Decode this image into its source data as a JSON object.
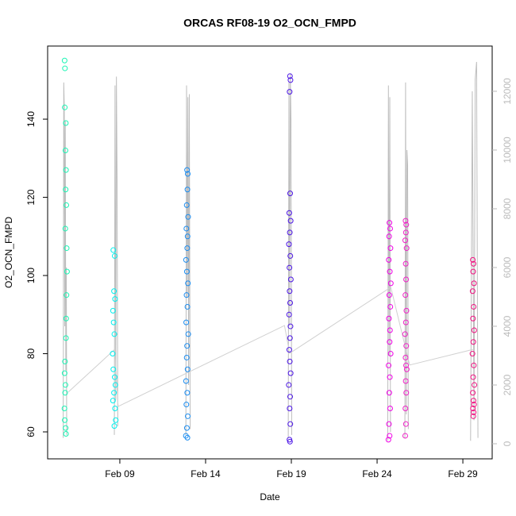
{
  "chart_data": {
    "type": "scatter",
    "title": "ORCAS RF08-19 O2_OCN_FMPD",
    "x_label": "Date",
    "y_label": "O2_OCN_FMPD",
    "xlim": [
      4.79,
      30.71
    ],
    "ylim": [
      53.1,
      158.7
    ],
    "y2lim": [
      -514,
      13540
    ],
    "xticks": [
      {
        "value": 9,
        "label": "Feb 09"
      },
      {
        "value": 14,
        "label": "Feb 14"
      },
      {
        "value": 19,
        "label": "Feb 19"
      },
      {
        "value": 24,
        "label": "Feb 24"
      },
      {
        "value": 29,
        "label": "Feb 29"
      }
    ],
    "yticks": [
      60,
      80,
      100,
      120,
      140
    ],
    "y2ticks": [
      0,
      2000,
      4000,
      6000,
      8000,
      10000,
      12000
    ],
    "y2_color": "#bbbbbb",
    "series": [
      {
        "axis": "y2",
        "mode": "lines",
        "color": "#bdbdbd",
        "x": [
          5.7,
          5.73,
          5.76,
          5.79,
          5.82,
          5.85,
          5.88,
          5.9,
          null,
          8.68,
          8.72,
          8.76,
          8.8,
          8.84,
          8.88,
          null,
          12.85,
          12.89,
          12.93,
          12.97,
          13.01,
          13.05,
          13.1,
          null,
          18.82,
          18.86,
          18.9,
          18.94,
          18.98,
          19.02,
          null,
          24.62,
          24.66,
          24.7,
          24.74,
          24.78,
          null,
          25.62,
          25.66,
          25.7,
          25.74,
          25.78,
          25.82,
          null,
          29.45,
          29.55,
          29.65,
          29.72,
          29.8,
          29.88
        ],
        "values": [
          200,
          12300,
          11500,
          4000,
          11000,
          2500,
          6000,
          300,
          null,
          300,
          12200,
          1500,
          12500,
          9000,
          600,
          null,
          300,
          12200,
          5000,
          11800,
          2000,
          11900,
          500,
          null,
          200,
          12300,
          4000,
          12600,
          11000,
          300,
          null,
          100,
          12200,
          3000,
          11800,
          400,
          null,
          200,
          12300,
          1000,
          10000,
          9500,
          500,
          null,
          100,
          12000,
          800,
          12400,
          13000,
          200
        ]
      },
      {
        "mode": "lines",
        "color": "#d0d0d0",
        "x": [
          6.0,
          8.7,
          8.9,
          18.6,
          18.9,
          24.8,
          25.9,
          29.6
        ],
        "values": [
          70.2,
          81.1,
          66.5,
          87.2,
          80.1,
          97,
          77.1,
          81.1
        ]
      },
      {
        "mode": "points",
        "color": "#19f5b4",
        "x": [
          5.78,
          5.8,
          5.79,
          5.85,
          5.83,
          5.86,
          5.84,
          5.88,
          5.82,
          5.9,
          5.92,
          5.89,
          5.87,
          5.86,
          5.8,
          5.78,
          5.83,
          5.81,
          5.77,
          5.79,
          5.84,
          5.86
        ],
        "values": [
          155,
          153,
          143,
          139,
          132,
          127,
          122,
          118,
          112,
          107,
          101,
          95,
          89,
          84,
          78,
          75,
          72,
          70,
          66,
          63,
          61,
          59.5
        ]
      },
      {
        "mode": "points",
        "color": "#00f0ee",
        "x": [
          8.62,
          8.7,
          8.66,
          8.72,
          8.6,
          8.64,
          8.68,
          8.58,
          8.62,
          8.7,
          8.74,
          8.66,
          8.6,
          8.72,
          8.76,
          8.68
        ],
        "values": [
          106.5,
          105,
          96,
          94,
          91,
          88,
          85,
          80,
          76,
          74,
          72,
          70,
          68,
          66,
          63,
          61.5
        ]
      },
      {
        "mode": "points",
        "color": "#1a8cf0",
        "x": [
          12.92,
          12.96,
          12.94,
          12.9,
          12.98,
          12.88,
          12.95,
          12.93,
          12.86,
          12.91,
          12.97,
          12.89,
          12.94,
          12.87,
          12.99,
          12.92,
          12.9,
          12.95,
          12.86,
          12.93,
          12.88,
          12.96,
          12.91,
          12.85,
          12.94
        ],
        "values": [
          127,
          126,
          122,
          118,
          115,
          112,
          110,
          107,
          104,
          101,
          98,
          95,
          92,
          88,
          85,
          82,
          79,
          76,
          73,
          70,
          67,
          64,
          61,
          59,
          58.5
        ]
      },
      {
        "mode": "points",
        "color": "#4b14e6",
        "x": [
          18.92,
          18.95,
          18.9,
          18.93,
          18.88,
          18.96,
          18.91,
          18.86,
          18.94,
          18.89,
          18.97,
          18.9,
          18.93,
          18.87,
          18.95,
          18.92,
          18.88,
          18.91,
          18.96,
          18.85,
          18.93,
          18.9,
          18.94,
          18.89,
          18.92
        ],
        "values": [
          151,
          150,
          147,
          121,
          116,
          114,
          111,
          108,
          105,
          102,
          99,
          96,
          93,
          90,
          87,
          84,
          81,
          78,
          75,
          72,
          69,
          66,
          62,
          58,
          57.5
        ]
      },
      {
        "mode": "points",
        "color": "#f000e6",
        "x": [
          24.72,
          24.76,
          24.7,
          24.78,
          24.68,
          24.74,
          24.8,
          24.71,
          24.77,
          24.69,
          24.75,
          24.73,
          24.79,
          24.67,
          24.74,
          24.71,
          24.76,
          24.69,
          24.73,
          24.66
        ],
        "values": [
          113.5,
          112,
          110,
          107,
          104,
          101,
          98,
          95,
          92,
          89,
          86,
          83,
          80,
          77,
          74,
          70,
          66,
          62,
          59,
          58
        ]
      },
      {
        "mode": "points",
        "color": "#f020c8",
        "x": [
          25.66,
          25.7,
          25.68,
          25.64,
          25.72,
          25.67,
          25.69,
          25.65,
          25.71,
          25.68,
          25.63,
          25.7,
          25.66,
          25.69,
          25.73,
          25.67,
          25.7,
          25.65,
          25.68,
          25.64
        ],
        "values": [
          114,
          113,
          111,
          109,
          107,
          103,
          99,
          95,
          91,
          88,
          85,
          82,
          79,
          77,
          76,
          73,
          70,
          66,
          62,
          59
        ]
      },
      {
        "mode": "points",
        "color": "#f01080",
        "x": [
          29.58,
          29.62,
          29.6,
          29.65,
          29.57,
          29.63,
          29.59,
          29.66,
          29.61,
          29.56,
          29.64,
          29.6,
          29.67,
          29.58,
          29.62,
          29.65,
          29.59,
          29.63,
          29.61
        ],
        "values": [
          104,
          103,
          101,
          98,
          96,
          92,
          89,
          86,
          83,
          80,
          77,
          74,
          72,
          70,
          68,
          67,
          66,
          65,
          64
        ]
      }
    ]
  }
}
